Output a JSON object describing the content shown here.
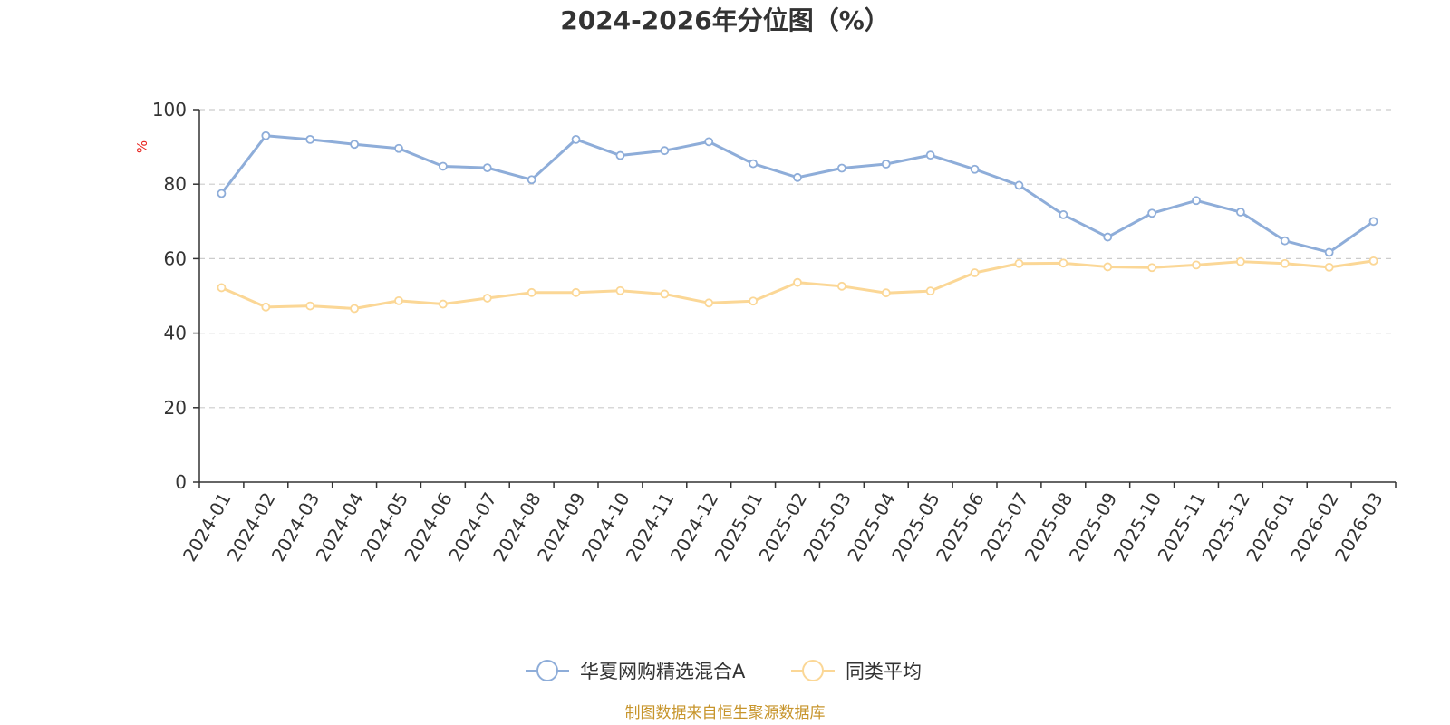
{
  "chart_data": {
    "type": "line",
    "title": "2024-2026年分位图（%）",
    "ylabel": "%",
    "xlabel": "",
    "ylim": [
      0,
      100
    ],
    "yticks": [
      0,
      20,
      40,
      60,
      80,
      100
    ],
    "grid": true,
    "legend_position": "bottom-center",
    "categories": [
      "2024-01",
      "2024-02",
      "2024-03",
      "2024-04",
      "2024-05",
      "2024-06",
      "2024-07",
      "2024-08",
      "2024-09",
      "2024-10",
      "2024-11",
      "2024-12",
      "2025-01",
      "2025-02",
      "2025-03",
      "2025-04",
      "2025-05",
      "2025-06",
      "2025-07",
      "2025-08",
      "2025-09",
      "2025-10",
      "2025-11",
      "2025-12",
      "2026-01",
      "2026-02",
      "2026-03"
    ],
    "series": [
      {
        "name": "华夏网购精选混合A",
        "color": "#8eadd9",
        "values": [
          77.5,
          93.0,
          92.0,
          90.7,
          89.6,
          84.8,
          84.4,
          81.2,
          92.0,
          87.7,
          89.0,
          91.4,
          85.5,
          81.8,
          84.3,
          85.4,
          87.8,
          84.0,
          79.7,
          71.8,
          65.8,
          72.2,
          75.6,
          72.5,
          64.8,
          61.7,
          70.0
        ]
      },
      {
        "name": "同类平均",
        "color": "#fbd796",
        "values": [
          52.2,
          47.0,
          47.3,
          46.6,
          48.7,
          47.8,
          49.4,
          50.9,
          50.9,
          51.4,
          50.5,
          48.1,
          48.6,
          53.6,
          52.6,
          50.8,
          51.3,
          56.2,
          58.7,
          58.8,
          57.8,
          57.6,
          58.3,
          59.2,
          58.7,
          57.7,
          59.4
        ]
      }
    ]
  },
  "footer": {
    "source": "制图数据来自恒生聚源数据库",
    "source_color": "#c7952c"
  },
  "colors": {
    "axis": "#333333",
    "grid": "#cccccc",
    "unit": "#e8231e"
  }
}
